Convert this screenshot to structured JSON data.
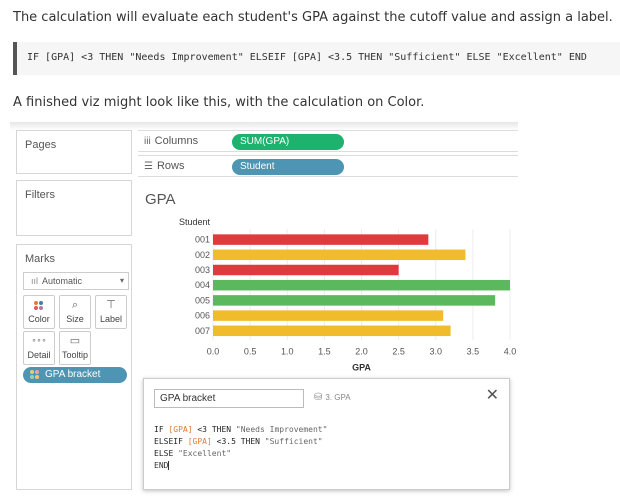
{
  "article": {
    "intro": "The calculation will evaluate each student's GPA against the cutoff value and assign a label.",
    "code": "IF [GPA] <3 THEN \"Needs Improvement\" ELSEIF [GPA] <3.5 THEN \"Sufficient\" ELSE \"Excellent\" END",
    "caption": "A finished viz might look like this, with the calculation on Color."
  },
  "tableau": {
    "pages_label": "Pages",
    "filters_label": "Filters",
    "marks": {
      "label": "Marks",
      "mark_type": "Automatic",
      "buttons": [
        "Color",
        "Size",
        "Label",
        "Detail",
        "Tooltip"
      ],
      "color_pill": "GPA bracket"
    },
    "columns": {
      "label": "Columns",
      "pill": "SUM(GPA)",
      "pill_color": "#1db36e"
    },
    "rows": {
      "label": "Rows",
      "pill": "Student",
      "pill_color": "#4e95b3"
    },
    "sheet_title": "GPA",
    "calc_dialog": {
      "name": "GPA bracket",
      "datasource": "3. GPA",
      "line1": {
        "kw": "IF ",
        "field": "[GPA]",
        "rest": " <3 THEN ",
        "str": "\"Needs Improvement\""
      },
      "line2": {
        "kw": "ELSEIF ",
        "field": "[GPA]",
        "rest": " <3.5 THEN ",
        "str": "\"Sufficient\""
      },
      "line3": {
        "kw": "ELSE ",
        "str": "\"Excellent\""
      },
      "line4": "END"
    }
  },
  "colors": {
    "needs_improvement": "#e03a3e",
    "sufficient": "#f0bc2c",
    "excellent": "#5cb85c"
  },
  "chart_data": {
    "type": "bar",
    "orientation": "horizontal",
    "categories": [
      "001",
      "002",
      "003",
      "004",
      "005",
      "006",
      "007"
    ],
    "values": [
      2.9,
      3.4,
      2.5,
      4.0,
      3.8,
      3.1,
      3.2
    ],
    "bar_colors": [
      "#e03a3e",
      "#f0bc2c",
      "#e03a3e",
      "#5cb85c",
      "#5cb85c",
      "#f0bc2c",
      "#f0bc2c"
    ],
    "xlabel": "GPA",
    "ylabel": "Student",
    "xlim": [
      0,
      4.0
    ],
    "xticks": [
      "0.0",
      "0.5",
      "1.0",
      "1.5",
      "2.0",
      "2.5",
      "3.0",
      "3.5",
      "4.0"
    ],
    "grid": true
  }
}
